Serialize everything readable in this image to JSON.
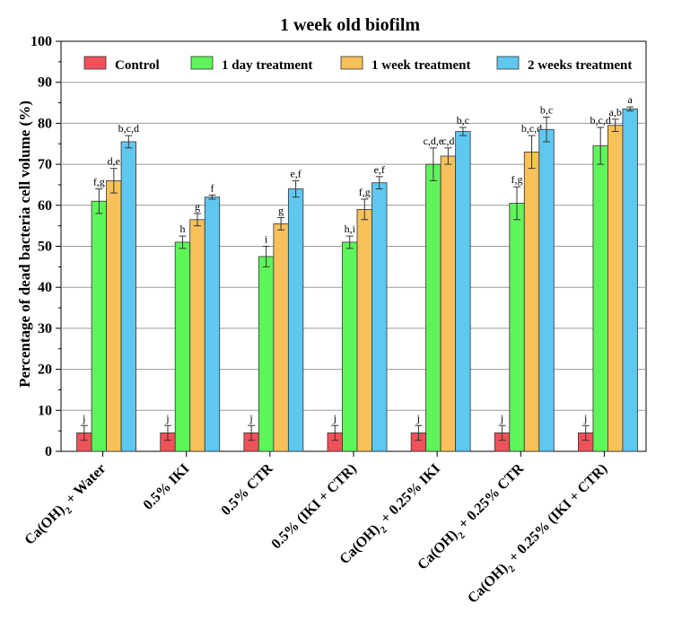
{
  "chart_data": {
    "type": "bar",
    "title": "1 week old biofilm",
    "xlabel": "",
    "ylabel": "Percentage of dead bacteria cell volume (%)",
    "ylim": [
      0,
      100
    ],
    "yticks": [
      "0",
      "10",
      "20",
      "30",
      "40",
      "50",
      "60",
      "70",
      "80",
      "90",
      "100"
    ],
    "grid": true,
    "legend_position": "top",
    "categories": [
      {
        "pre": "Ca(OH)",
        "sub": "2",
        "post": " + Water"
      },
      {
        "pre": "0.5% IKI",
        "sub": "",
        "post": ""
      },
      {
        "pre": "0.5% CTR",
        "sub": "",
        "post": ""
      },
      {
        "pre": "0.5% (IKI + CTR)",
        "sub": "",
        "post": ""
      },
      {
        "pre": "Ca(OH)",
        "sub": "2",
        "post": " + 0.25% IKI"
      },
      {
        "pre": "Ca(OH)",
        "sub": "2",
        "post": " + 0.25% CTR"
      },
      {
        "pre": "Ca(OH)",
        "sub": "2",
        "post": " + 0.25% (IKI + CTR)"
      }
    ],
    "series": [
      {
        "name": "Control",
        "color": "#f0525a",
        "values": [
          4.5,
          4.5,
          4.5,
          4.5,
          4.5,
          4.5,
          4.5
        ],
        "errors": [
          1.8,
          1.8,
          1.8,
          1.8,
          1.8,
          1.8,
          1.8
        ],
        "labels": [
          "j",
          "j",
          "j",
          "j",
          "j",
          "j",
          "j"
        ]
      },
      {
        "name": "1 day treatment",
        "color": "#5ef55a",
        "values": [
          61,
          51,
          47.5,
          51,
          70,
          60.5,
          74.5
        ],
        "errors": [
          3,
          1.5,
          2.5,
          1.5,
          4,
          4,
          4.5
        ],
        "labels": [
          "f,g",
          "h",
          "i",
          "h,i",
          "c,d,e",
          "f,g",
          "b,c,d"
        ]
      },
      {
        "name": "1 week treatment",
        "color": "#f8c15a",
        "values": [
          66,
          56.5,
          55.5,
          59,
          72,
          73,
          79.5
        ],
        "errors": [
          3,
          1.5,
          1.5,
          2.5,
          2,
          4,
          1.5
        ],
        "labels": [
          "d,e",
          "g",
          "g",
          "f,g",
          "c,d",
          "b,c,d",
          "a,b"
        ]
      },
      {
        "name": "2 weeks treatment",
        "color": "#5ec8f0",
        "values": [
          75.5,
          62,
          64,
          65.5,
          78,
          78.5,
          83.5
        ],
        "errors": [
          1.5,
          0.5,
          2,
          1.5,
          1,
          3,
          0.5
        ],
        "labels": [
          "b,c,d",
          "f",
          "e,f",
          "e,f",
          "b,c",
          "b,c",
          "a"
        ]
      }
    ]
  }
}
